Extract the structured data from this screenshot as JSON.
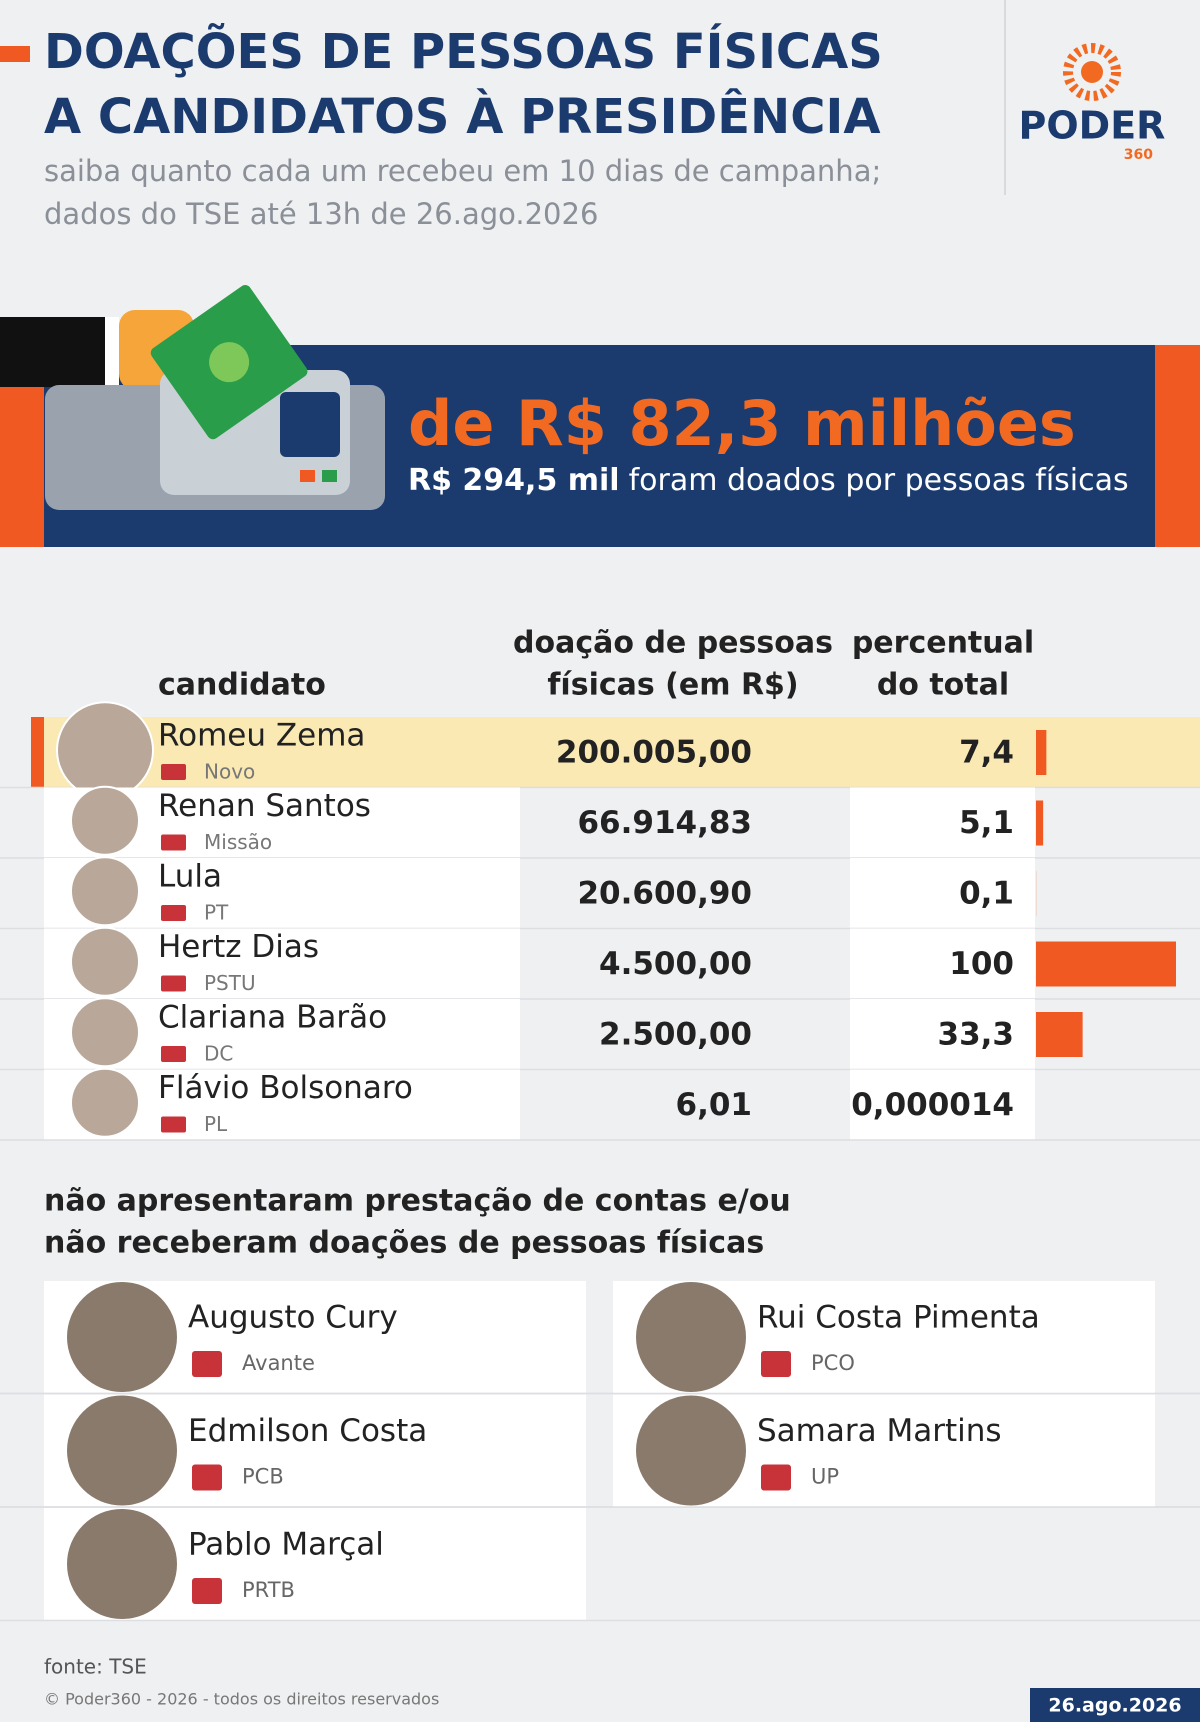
{
  "header": {
    "title_lines": [
      "DOAÇÕES DE PESSOAS FÍSICAS",
      "A CANDIDATOS À PRESIDÊNCIA"
    ],
    "subtitle_lines": [
      "saiba quanto cada um recebeu em 10 dias de campanha;",
      "dados do TSE até 13h de 26.ago.2026"
    ],
    "logo": {
      "name": "PODER",
      "number": "360"
    }
  },
  "banner": {
    "headline": "de R$ 82,3 milhões",
    "amount": "R$ 294,5 mil",
    "text": "foram doados por pessoas físicas"
  },
  "table": {
    "columns": {
      "candidate": "candidato",
      "donation": [
        "doação de pessoas",
        "físicas (em R$)"
      ],
      "percent": [
        "percentual",
        "do total"
      ]
    },
    "rows": [
      {
        "name": "Romeu Zema",
        "party": "Novo",
        "donation": "200.005,00",
        "percent": 7.4,
        "percent_label": "7,4"
      },
      {
        "name": "Renan Santos",
        "party": "Missão",
        "donation": "66.914,83",
        "percent": 5.1,
        "percent_label": "5,1"
      },
      {
        "name": "Lula",
        "party": "PT",
        "donation": "20.600,90",
        "percent": 0.1,
        "percent_label": "0,1"
      },
      {
        "name": "Hertz Dias",
        "party": "PSTU",
        "donation": "4.500,00",
        "percent": 100,
        "percent_label": "100"
      },
      {
        "name": "Clariana Barão",
        "party": "DC",
        "donation": "2.500,00",
        "percent": 33.3,
        "percent_label": "33,3"
      },
      {
        "name": "Flávio Bolsonaro",
        "party": "PL",
        "donation": "6,01",
        "percent": 1.4e-05,
        "percent_label": "0,000014"
      }
    ]
  },
  "missing": {
    "title_lines": [
      "não apresentaram prestação de contas e/ou",
      "não receberam doações de pessoas físicas"
    ],
    "candidates": [
      {
        "name": "Augusto Cury",
        "party": "Avante"
      },
      {
        "name": "Rui Costa Pimenta",
        "party": "PCO"
      },
      {
        "name": "Edmilson Costa",
        "party": "PCB"
      },
      {
        "name": "Samara Martins",
        "party": "UP"
      },
      {
        "name": "Pablo Marçal",
        "party": "PRTB"
      }
    ]
  },
  "footer": {
    "source": "fonte: TSE",
    "copyright": "© Poder360 - 2026 - todos os direitos reservados",
    "date": "26.ago.2026"
  }
}
